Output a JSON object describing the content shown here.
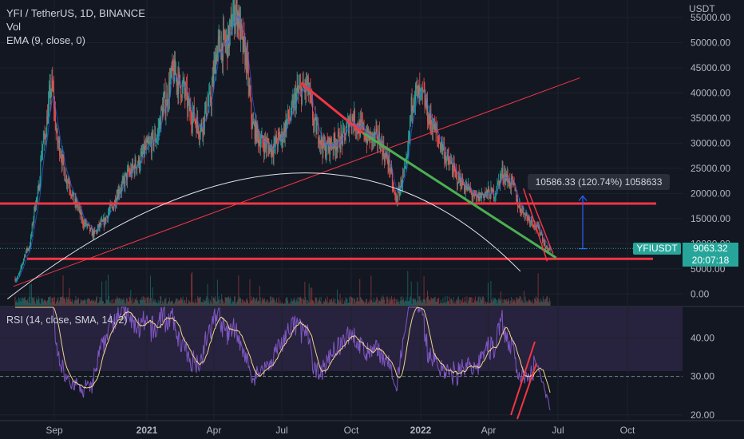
{
  "legend": {
    "symbol_line": "YFI / TetherUS, 1D, BINANCE",
    "vol_label": "Vol",
    "ema_label": "EMA (9, close, 0)",
    "rsi_label": "RSI (14, close, SMA, 14, 2)"
  },
  "currency_label": "USDT",
  "price_tag": {
    "symbol": "YFIUSDT",
    "price": "9063.32",
    "countdown": "20:07:18"
  },
  "measure_label": "10586.33 (120.74%) 1058633",
  "colors": {
    "background": "#131722",
    "up": "#26a69a",
    "down": "#ef5350",
    "support_line": "#f23645",
    "green_trendline": "#4caf50",
    "rsi_line": "#7e57c2",
    "rsi_band": "#2a2340",
    "measure": "#2962ff"
  },
  "chart_data": [
    {
      "type": "candlestick",
      "ylabel": "USDT",
      "ylim": [
        -2500,
        58500
      ],
      "y_ticks": [
        "55000.00",
        "50000.00",
        "45000.00",
        "40000.00",
        "35000.00",
        "30000.00",
        "25000.00",
        "20000.00",
        "15000.00",
        "10000.00",
        "5000.00",
        "0.00"
      ],
      "x_ticks": [
        "Sep",
        "2021",
        "Apr",
        "Jul",
        "Oct",
        "2022",
        "Apr",
        "Jul",
        "Oct"
      ],
      "last_price": 9063.32,
      "series": [
        {
          "values": [
            [
              -12,
              3000
            ],
            [
              -8,
              9000
            ],
            [
              -5,
              19000
            ],
            [
              -3,
              30000
            ],
            [
              0,
              41000
            ],
            [
              2,
              30000
            ],
            [
              5,
              23000
            ],
            [
              8,
              18000
            ],
            [
              11,
              14000
            ],
            [
              14,
              12000
            ],
            [
              17,
              14000
            ],
            [
              20,
              17000
            ],
            [
              23,
              21000
            ],
            [
              26,
              24000
            ],
            [
              29,
              26000
            ],
            [
              32,
              29000
            ],
            [
              35,
              31000
            ],
            [
              38,
              38000
            ],
            [
              41,
              44000
            ],
            [
              44,
              41000
            ],
            [
              47,
              36000
            ],
            [
              50,
              33000
            ],
            [
              53,
              38000
            ],
            [
              56,
              49000
            ],
            [
              59,
              50000
            ],
            [
              62,
              57000
            ],
            [
              65,
              48000
            ],
            [
              68,
              33000
            ],
            [
              71,
              30000
            ],
            [
              74,
              29000
            ],
            [
              77,
              31000
            ],
            [
              80,
              35000
            ],
            [
              83,
              40000
            ],
            [
              86,
              41000
            ],
            [
              89,
              33000
            ],
            [
              92,
              29000
            ],
            [
              95,
              30000
            ],
            [
              98,
              31000
            ],
            [
              101,
              35000
            ],
            [
              104,
              33000
            ],
            [
              107,
              31000
            ],
            [
              110,
              31000
            ],
            [
              113,
              27000
            ],
            [
              116,
              19000
            ],
            [
              119,
              24000
            ],
            [
              122,
              40000
            ],
            [
              125,
              39000
            ],
            [
              128,
              34000
            ],
            [
              131,
              30000
            ],
            [
              134,
              26000
            ],
            [
              137,
              23000
            ],
            [
              140,
              21000
            ],
            [
              143,
              19000
            ],
            [
              146,
              20000
            ],
            [
              149,
              20000
            ],
            [
              152,
              24000
            ],
            [
              155,
              22000
            ],
            [
              158,
              17000
            ],
            [
              161,
              15000
            ],
            [
              164,
              13000
            ],
            [
              167,
              9000
            ]
          ]
        },
        {
          "name": "EMA (9, close, 0)",
          "values": []
        }
      ],
      "annotations": {
        "support_lines": [
          18000,
          7000
        ],
        "rising_trendline": [
          [
            -13,
            1500
          ],
          [
            178,
            43000
          ]
        ],
        "red_downtrend_segment": [
          [
            84,
            42000
          ],
          [
            107,
            31000
          ]
        ],
        "green_downtrend_line": [
          [
            105,
            32000
          ],
          [
            170,
            7200
          ]
        ],
        "arc_curve": [
          [
            -15,
            -1000
          ],
          [
            80,
            24000
          ],
          [
            158,
            4500
          ]
        ],
        "measure_arrow": [
          [
            179,
            9000
          ],
          [
            179,
            19500
          ]
        ],
        "price_line": 9063.32
      }
    },
    {
      "type": "line",
      "ylabel": "",
      "ylim": [
        18.5,
        48
      ],
      "y_ticks": [
        "40.00",
        "30.00",
        "20.00"
      ],
      "reference_line": 30,
      "series": [
        {
          "values": []
        },
        {
          "values": []
        }
      ]
    }
  ]
}
